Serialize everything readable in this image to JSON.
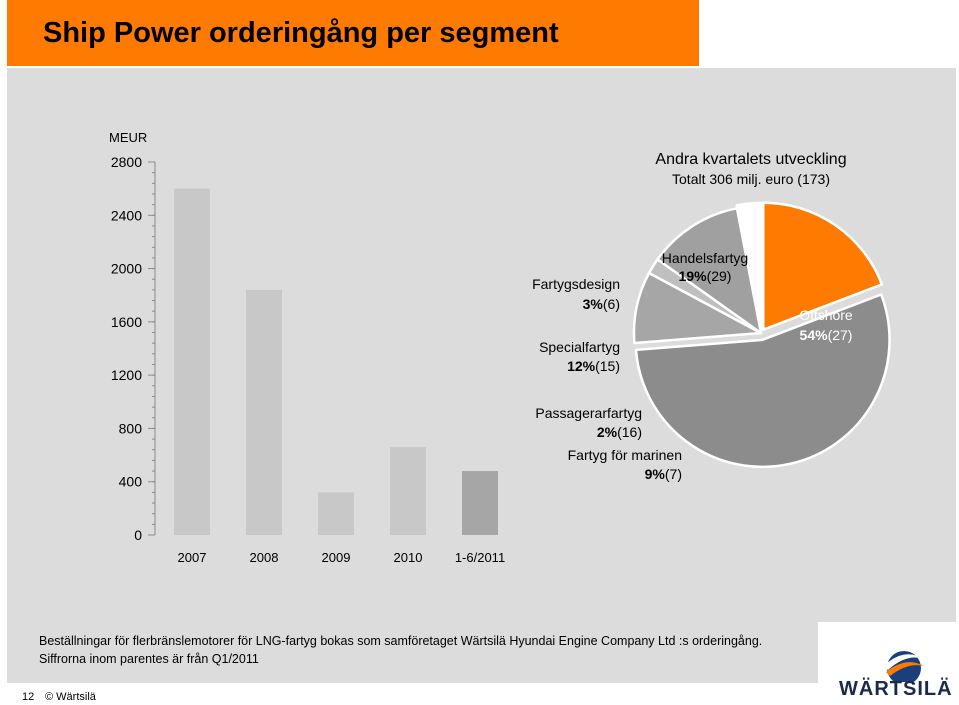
{
  "title": "Ship Power orderingång per segment",
  "colors": {
    "accent": "#ff7a00",
    "panel": "#dcdcdc",
    "bar": "#c8c8c8",
    "bar_last": "#a6a6a6"
  },
  "chart_data": [
    {
      "type": "bar",
      "unit_label": "MEUR",
      "categories": [
        "2007",
        "2008",
        "2009",
        "2010",
        "1-6/2011"
      ],
      "values": [
        2600,
        1840,
        320,
        660,
        480
      ],
      "y_ticks": [
        "0",
        "400",
        "800",
        "1200",
        "1600",
        "2000",
        "2400",
        "2800"
      ],
      "ylim": [
        0,
        2800
      ],
      "grid": false
    },
    {
      "type": "pie",
      "title": "Andra kvartalets utveckling",
      "subtitle": "Totalt 306 milj. euro (173)",
      "slices": [
        {
          "name": "Handelsfartyg",
          "pct_label": "19%",
          "value": 19,
          "prev": "(29)",
          "color": "#ff7a00"
        },
        {
          "name": "Offshore",
          "pct_label": "54%",
          "value": 54,
          "prev": "(27)",
          "color": "#8c8c8c"
        },
        {
          "name": "Fartyg för marinen",
          "pct_label": "9%",
          "value": 9,
          "prev": "(7)",
          "color": "#a6a6a6"
        },
        {
          "name": "Passagerarfartyg",
          "pct_label": "2%",
          "value": 2,
          "prev": "(16)",
          "color": "#bfbfbf"
        },
        {
          "name": "Specialfartyg",
          "pct_label": "12%",
          "value": 12,
          "prev": "(15)",
          "color": "#a0a0a0"
        },
        {
          "name": "Fartygsdesign",
          "pct_label": "3%",
          "value": 3,
          "prev": "(6)",
          "color": "#ffffff"
        }
      ]
    }
  ],
  "notes": {
    "line1": "Beställningar för flerbränslemotorer för LNG-fartyg bokas som samföretaget Wärtsilä Hyundai Engine Company Ltd :s orderingång.",
    "line2": "Siffrorna inom parentes är från Q1/2011"
  },
  "footer": {
    "page": "12",
    "copyright": "© Wärtsilä"
  },
  "logo": {
    "text": "WÄRTSILÄ"
  }
}
